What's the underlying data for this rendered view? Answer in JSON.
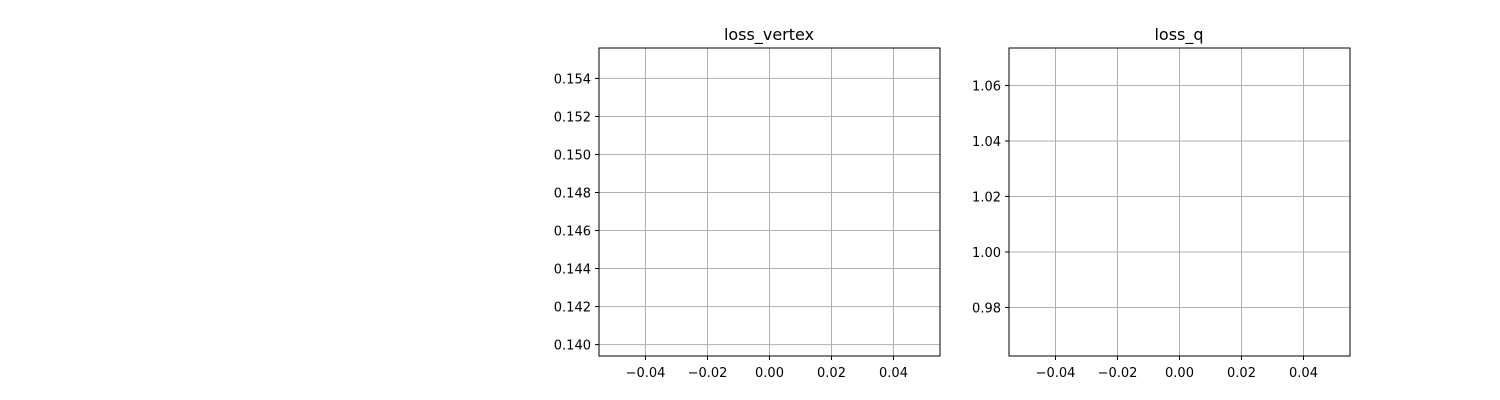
{
  "chart_data": [
    {
      "type": "line",
      "title": "loss_vertex",
      "xlabel": "",
      "ylabel": "",
      "grid": true,
      "xlim": [
        -0.055,
        0.055
      ],
      "ylim": [
        0.1394,
        0.1556
      ],
      "xticks": [
        -0.04,
        -0.02,
        0.0,
        0.02,
        0.04
      ],
      "xtick_labels": [
        "−0.04",
        "−0.02",
        "0.00",
        "0.02",
        "0.04"
      ],
      "yticks": [
        0.14,
        0.142,
        0.144,
        0.146,
        0.148,
        0.15,
        0.152,
        0.154
      ],
      "ytick_labels": [
        "0.140",
        "0.142",
        "0.144",
        "0.146",
        "0.148",
        "0.150",
        "0.152",
        "0.154"
      ],
      "series": []
    },
    {
      "type": "line",
      "title": "loss_q",
      "xlabel": "",
      "ylabel": "",
      "grid": true,
      "xlim": [
        -0.055,
        0.055
      ],
      "ylim": [
        0.9625,
        1.0735
      ],
      "xticks": [
        -0.04,
        -0.02,
        0.0,
        0.02,
        0.04
      ],
      "xtick_labels": [
        "−0.04",
        "−0.02",
        "0.00",
        "0.02",
        "0.04"
      ],
      "yticks": [
        0.98,
        1.0,
        1.02,
        1.04,
        1.06
      ],
      "ytick_labels": [
        "0.98",
        "1.00",
        "1.02",
        "1.04",
        "1.06"
      ],
      "series": []
    }
  ]
}
